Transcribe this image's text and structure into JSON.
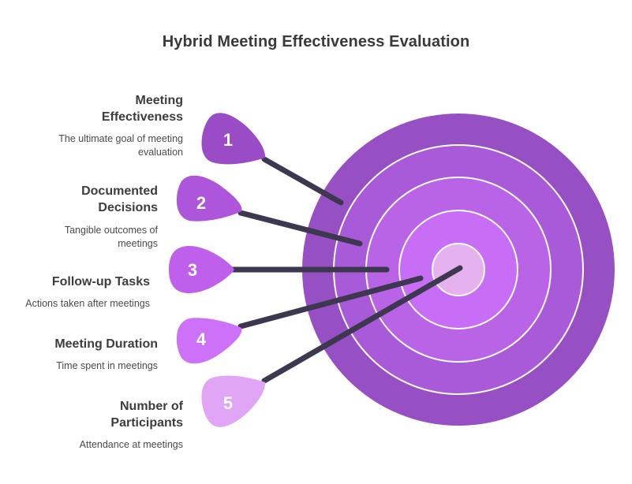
{
  "title": "Hybrid Meeting Effectiveness Evaluation",
  "colors": {
    "ring_colors": [
      "#974fc4",
      "#a95ad8",
      "#b963e6",
      "#c86ef6",
      "#d57cff",
      "#e6b1ef"
    ],
    "ring_stroke": "#ffffff",
    "dart_colors": [
      "#9a4bc6",
      "#ad55db",
      "#bf60ec",
      "#cd72f8",
      "#e0a5f4"
    ],
    "dart_number_color": "#ffffff",
    "shaft_color": "#3e3750",
    "text_color": "#3d3d3d"
  },
  "items": [
    {
      "number": "1",
      "label_line1": "Meeting",
      "label_line2": "Effectiveness",
      "desc_line1": "The ultimate goal of meeting",
      "desc_line2": "evaluation"
    },
    {
      "number": "2",
      "label_line1": "Documented",
      "label_line2": "Decisions",
      "desc_line1": "Tangible outcomes of",
      "desc_line2": "meetings"
    },
    {
      "number": "3",
      "label_line1": "Follow-up Tasks",
      "label_line2": "",
      "desc_line1": "Actions taken after meetings",
      "desc_line2": ""
    },
    {
      "number": "4",
      "label_line1": "Meeting Duration",
      "label_line2": "",
      "desc_line1": "Time spent in meetings",
      "desc_line2": ""
    },
    {
      "number": "5",
      "label_line1": "Number of",
      "label_line2": "Participants",
      "desc_line1": "Attendance at meetings",
      "desc_line2": ""
    }
  ]
}
